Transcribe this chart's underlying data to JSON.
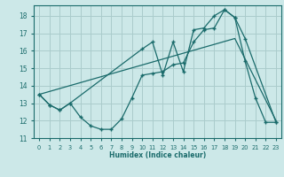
{
  "xlabel": "Humidex (Indice chaleur)",
  "bg_color": "#cce8e8",
  "grid_color": "#aacccc",
  "line_color": "#1a6b6b",
  "xlim": [
    -0.5,
    23.5
  ],
  "ylim": [
    11,
    18.6
  ],
  "yticks": [
    11,
    12,
    13,
    14,
    15,
    16,
    17,
    18
  ],
  "xticks": [
    0,
    1,
    2,
    3,
    4,
    5,
    6,
    7,
    8,
    9,
    10,
    11,
    12,
    13,
    14,
    15,
    16,
    17,
    18,
    19,
    20,
    21,
    22,
    23
  ],
  "series1_x": [
    0,
    1,
    2,
    3,
    4,
    5,
    6,
    7,
    8,
    9,
    10,
    11,
    12,
    13,
    14,
    15,
    16,
    17,
    18,
    19,
    20,
    21,
    22,
    23
  ],
  "series1_y": [
    13.5,
    12.9,
    12.6,
    13.0,
    12.2,
    11.7,
    11.5,
    11.5,
    12.1,
    13.3,
    14.6,
    14.7,
    14.8,
    15.2,
    15.3,
    16.5,
    17.2,
    17.3,
    18.35,
    17.9,
    15.4,
    13.3,
    11.9,
    11.9
  ],
  "series2_x": [
    0,
    1,
    2,
    3,
    10,
    11,
    12,
    13,
    14,
    15,
    16,
    17,
    18,
    19,
    20,
    23
  ],
  "series2_y": [
    13.5,
    12.9,
    12.6,
    13.0,
    16.1,
    16.5,
    14.6,
    16.5,
    14.8,
    17.2,
    17.3,
    18.0,
    18.35,
    17.9,
    16.7,
    11.9
  ],
  "series3_x": [
    0,
    19,
    23
  ],
  "series3_y": [
    13.5,
    16.7,
    12.0
  ]
}
